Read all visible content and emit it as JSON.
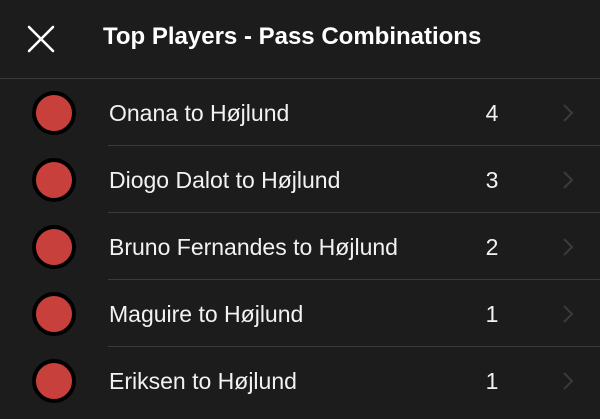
{
  "header": {
    "title": "Top Players - Pass Combinations",
    "close_icon": "close-icon"
  },
  "colors": {
    "background": "#1c1c1c",
    "dot": "#c8403c",
    "dot_ring": "#000000",
    "chevron": "#3a3a3a"
  },
  "rows": [
    {
      "label": "Onana to Højlund",
      "count": "4"
    },
    {
      "label": "Diogo Dalot to Højlund",
      "count": "3"
    },
    {
      "label": "Bruno Fernandes to Højlund",
      "count": "2"
    },
    {
      "label": "Maguire to Højlund",
      "count": "1"
    },
    {
      "label": "Eriksen to Højlund",
      "count": "1"
    }
  ]
}
